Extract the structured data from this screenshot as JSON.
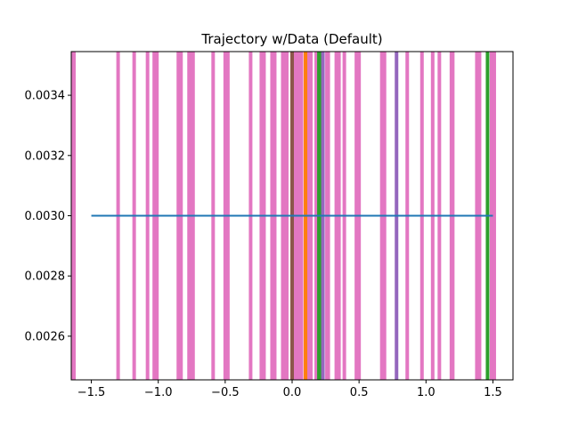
{
  "chart_data": {
    "type": "line",
    "title": "Trajectory w/Data (Default)",
    "xlabel": "",
    "ylabel": "",
    "xlim": [
      -1.65,
      1.65
    ],
    "ylim": [
      0.002455,
      0.003545
    ],
    "grid": false,
    "x_ticks": [
      -1.5,
      -1.0,
      -0.5,
      0.0,
      0.5,
      1.0,
      1.5
    ],
    "x_tick_labels": [
      "−1.5",
      "−1.0",
      "−0.5",
      "0.0",
      "0.5",
      "1.0",
      "1.5"
    ],
    "y_ticks": [
      0.0026,
      0.0028,
      0.003,
      0.0032,
      0.0034
    ],
    "y_tick_labels": [
      "0.0026",
      "0.0028",
      "0.0030",
      "0.0032",
      "0.0034"
    ],
    "series": [
      {
        "kind": "line",
        "color": "#1f77b4",
        "x": [
          -1.5,
          1.5
        ],
        "y": [
          0.003,
          0.003
        ]
      },
      {
        "kind": "vlines",
        "color": "#e377c2",
        "x": [
          -1.64,
          -1.63,
          -1.3,
          -1.18,
          -1.08,
          -1.03,
          -1.01,
          -0.85,
          -0.83,
          -0.77,
          -0.75,
          -0.74,
          -0.59,
          -0.5,
          -0.48,
          -0.31,
          -0.23,
          -0.21,
          -0.15,
          -0.13,
          -0.07,
          -0.06,
          -0.04,
          0.02,
          0.04,
          0.05,
          0.07,
          0.12,
          0.14,
          0.18,
          0.22,
          0.26,
          0.27,
          0.33,
          0.35,
          0.39,
          0.48,
          0.5,
          0.67,
          0.69,
          0.86,
          0.97,
          1.05,
          1.1,
          1.19,
          1.2,
          1.38,
          1.4,
          1.49,
          1.51
        ]
      },
      {
        "kind": "vlines",
        "color": "#2ca02c",
        "x": [
          0.2,
          0.22,
          1.46
        ]
      },
      {
        "kind": "vlines",
        "color": "#9467bd",
        "x": [
          0.23,
          0.78
        ]
      },
      {
        "kind": "vlines",
        "color": "#8c564b",
        "x": [
          0.0
        ]
      },
      {
        "kind": "vlines",
        "color": "#ff7f0e",
        "x": [
          0.1
        ]
      }
    ]
  }
}
